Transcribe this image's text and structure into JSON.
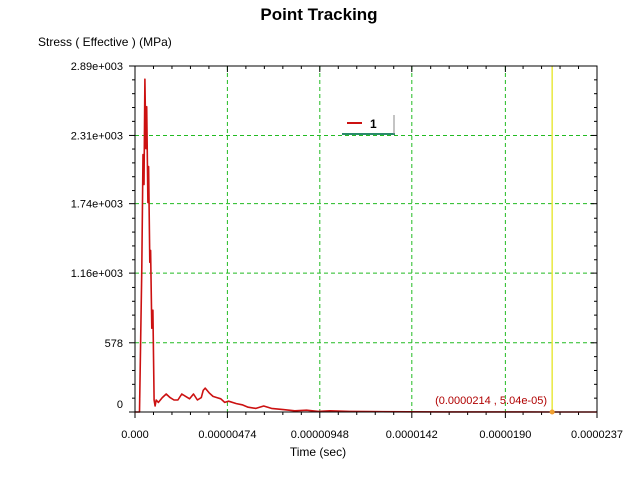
{
  "chart_data": {
    "type": "line",
    "title": "Point Tracking",
    "ylabel": "Stress ( Effective )  (MPa)",
    "xlabel": "Time (sec)",
    "xlim": [
      0,
      2.37e-05
    ],
    "ylim": [
      0,
      2890
    ],
    "x_ticks": [
      "0.000",
      "0.00000474",
      "0.00000948",
      "0.0000142",
      "0.0000190",
      "0.0000237"
    ],
    "x_tick_values": [
      0,
      4.74e-06,
      9.48e-06,
      1.42e-05,
      1.9e-05,
      2.37e-05
    ],
    "y_ticks": [
      "0",
      "578",
      "1.16e+003",
      "1.74e+003",
      "2.31e+003",
      "2.89e+003"
    ],
    "y_tick_values": [
      0,
      578,
      1160,
      1740,
      2310,
      2890
    ],
    "grid": true,
    "legend_position": "top-center",
    "series": [
      {
        "name": "1",
        "color": "#cc1111",
        "x": [
          0,
          2.3e-07,
          3.5e-07,
          4.1e-07,
          4.6e-07,
          5.1e-07,
          5.6e-07,
          6e-07,
          6.6e-07,
          7e-07,
          7.6e-07,
          8e-07,
          8.6e-07,
          9.2e-07,
          9.8e-07,
          1.03e-06,
          1.09e-06,
          1.2e-06,
          1.4e-06,
          1.6e-06,
          1.8e-06,
          2e-06,
          2.2e-06,
          2.4e-06,
          2.6e-06,
          2.8e-06,
          3e-06,
          3.2e-06,
          3.4e-06,
          3.5e-06,
          3.6e-06,
          3.8e-06,
          4e-06,
          4.2e-06,
          4.4e-06,
          4.6e-06,
          4.8e-06,
          5.2e-06,
          5.5e-06,
          5.8e-06,
          6.2e-06,
          6.6e-06,
          7e-06,
          7.6e-06,
          8.2e-06,
          8.8e-06,
          9.4e-06,
          1e-05,
          1.1e-05,
          1.2e-05,
          1.4e-05,
          1.6e-05,
          1.8e-05,
          2e-05,
          2.14e-05,
          2.25e-05,
          2.37e-05
        ],
        "y": [
          0,
          0,
          1200,
          2150,
          1900,
          2780,
          2200,
          2550,
          1750,
          2050,
          1250,
          1350,
          700,
          850,
          100,
          50,
          100,
          80,
          120,
          150,
          120,
          100,
          100,
          150,
          130,
          110,
          150,
          100,
          120,
          180,
          200,
          160,
          130,
          120,
          110,
          80,
          90,
          70,
          60,
          40,
          30,
          50,
          30,
          20,
          10,
          15,
          5,
          10,
          5,
          3,
          2,
          1,
          1,
          0.5,
          5.04e-05,
          0,
          0
        ]
      }
    ],
    "probe_label": "(0.0000214 , 5.04e-05)",
    "probe_x": 2.14e-05,
    "probe_y": 5.04e-05,
    "colors": {
      "line": "#cc1111",
      "grid": "#22bb22",
      "cursor": "#e8e840",
      "probe_text": "#b00000",
      "legend_underline": "#2a8a6a"
    }
  }
}
